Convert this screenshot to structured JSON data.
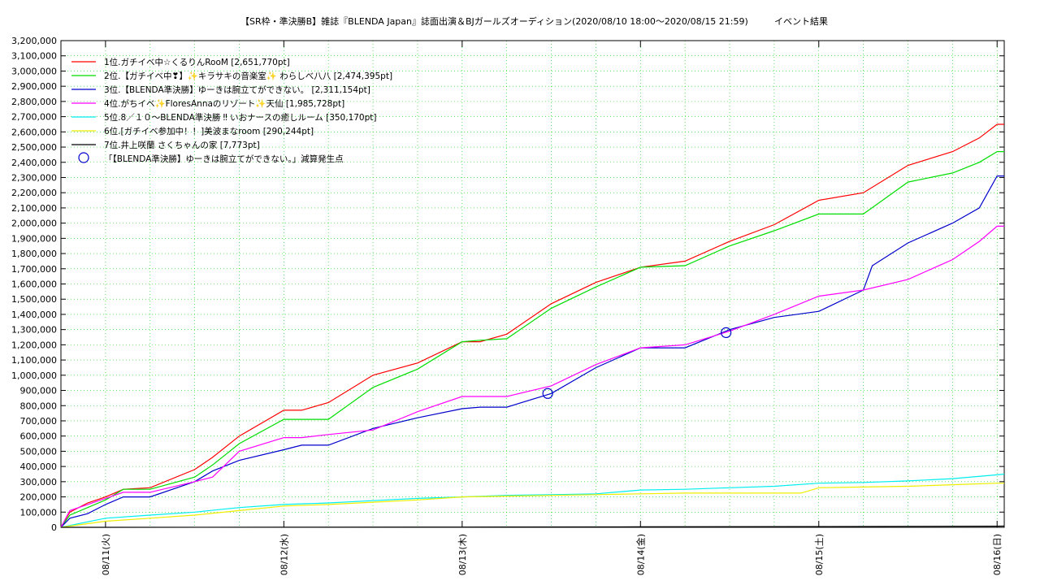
{
  "chart_data": {
    "type": "line",
    "title": "【SR枠・準決勝B】雑誌『BLENDA Japan』誌面出演＆BJガールズオーディション(2020/08/10 18:00〜2020/08/15 21:59)",
    "subtitle": "イベント結果",
    "ylim": [
      0,
      3200000
    ],
    "y_ticks": [
      "0",
      "100,000",
      "200,000",
      "300,000",
      "400,000",
      "500,000",
      "600,000",
      "700,000",
      "800,000",
      "900,000",
      "1,000,000",
      "1,100,000",
      "1,200,000",
      "1,300,000",
      "1,400,000",
      "1,500,000",
      "1,600,000",
      "1,700,000",
      "1,800,000",
      "1,900,000",
      "2,000,000",
      "2,100,000",
      "2,200,000",
      "2,300,000",
      "2,400,000",
      "2,500,000",
      "2,600,000",
      "2,700,000",
      "2,800,000",
      "2,900,000",
      "3,000,000",
      "3,100,000",
      "3,200,000"
    ],
    "x_ticks": [
      "08/11(火)",
      "08/12(水)",
      "08/13(木)",
      "08/14(金)",
      "08/15(土)",
      "08/16(日)"
    ],
    "x_tick_days": [
      1,
      2,
      3,
      4,
      5,
      6
    ],
    "xlim_days": [
      0.75,
      6.04
    ],
    "grid": true,
    "legend_placement": "top-left",
    "series": [
      {
        "name": "1位.ガチイベ中☆くるりんRooM [2,651,770pt]",
        "color": "#ff0000",
        "x": [
          0.75,
          0.8,
          0.9,
          1.0,
          1.1,
          1.25,
          1.5,
          1.6,
          1.75,
          2.0,
          2.1,
          2.25,
          2.5,
          2.75,
          3.0,
          3.1,
          3.25,
          3.5,
          3.75,
          4.0,
          4.25,
          4.5,
          4.75,
          5.0,
          5.25,
          5.5,
          5.75,
          5.9,
          6.0,
          6.04
        ],
        "y": [
          0,
          100000,
          160000,
          200000,
          250000,
          260000,
          380000,
          460000,
          600000,
          770000,
          770000,
          820000,
          1000000,
          1080000,
          1220000,
          1220000,
          1270000,
          1470000,
          1610000,
          1710000,
          1750000,
          1880000,
          1990000,
          2150000,
          2200000,
          2380000,
          2470000,
          2560000,
          2650000,
          2650000
        ]
      },
      {
        "name": "2位.【ガチイベ中❣】✨キラサキの音楽室✨ わらしべ八八 [2,474,395pt]",
        "color": "#00dd00",
        "x": [
          0.75,
          0.8,
          0.9,
          1.0,
          1.1,
          1.25,
          1.5,
          1.6,
          1.75,
          2.0,
          2.1,
          2.25,
          2.5,
          2.75,
          3.0,
          3.1,
          3.25,
          3.5,
          3.75,
          4.0,
          4.25,
          4.5,
          4.75,
          5.0,
          5.25,
          5.5,
          5.75,
          5.9,
          6.0,
          6.04
        ],
        "y": [
          0,
          80000,
          130000,
          180000,
          250000,
          250000,
          330000,
          410000,
          550000,
          710000,
          710000,
          710000,
          920000,
          1040000,
          1220000,
          1230000,
          1240000,
          1440000,
          1580000,
          1710000,
          1720000,
          1850000,
          1950000,
          2060000,
          2060000,
          2270000,
          2330000,
          2400000,
          2470000,
          2470000
        ]
      },
      {
        "name": "3位.【BLENDA準決勝】ゆーきは腕立てができない。 [2,311,154pt]",
        "color": "#0000cc",
        "x": [
          0.75,
          0.8,
          0.9,
          1.0,
          1.1,
          1.25,
          1.5,
          1.6,
          1.75,
          2.0,
          2.1,
          2.25,
          2.5,
          2.75,
          3.0,
          3.1,
          3.25,
          3.5,
          3.75,
          4.0,
          4.25,
          4.5,
          4.75,
          5.0,
          5.25,
          5.3,
          5.5,
          5.75,
          5.9,
          6.0,
          6.04
        ],
        "y": [
          0,
          60000,
          90000,
          150000,
          200000,
          200000,
          300000,
          370000,
          440000,
          510000,
          540000,
          540000,
          650000,
          720000,
          780000,
          790000,
          790000,
          880000,
          1050000,
          1180000,
          1180000,
          1300000,
          1380000,
          1420000,
          1560000,
          1720000,
          1870000,
          2000000,
          2100000,
          2310000,
          2310000
        ]
      },
      {
        "name": "4位.がちイベ✨FloresAnnaのリゾート✨天仙 [1,985,728pt]",
        "color": "#ff00ff",
        "x": [
          0.75,
          0.8,
          0.9,
          1.0,
          1.1,
          1.25,
          1.5,
          1.6,
          1.75,
          2.0,
          2.1,
          2.25,
          2.5,
          2.75,
          3.0,
          3.1,
          3.25,
          3.5,
          3.75,
          4.0,
          4.25,
          4.5,
          4.75,
          5.0,
          5.25,
          5.5,
          5.75,
          5.9,
          6.0,
          6.04
        ],
        "y": [
          0,
          110000,
          150000,
          190000,
          230000,
          230000,
          300000,
          330000,
          500000,
          590000,
          590000,
          610000,
          640000,
          760000,
          860000,
          860000,
          860000,
          930000,
          1070000,
          1180000,
          1200000,
          1290000,
          1400000,
          1520000,
          1560000,
          1630000,
          1760000,
          1880000,
          1980000,
          1980000
        ]
      },
      {
        "name": "5位.8／１０〜BLENDA準決勝 ‼ いおナースの癒しルーム [350,170pt]",
        "color": "#00eeee",
        "x": [
          0.75,
          1.0,
          1.25,
          1.5,
          1.75,
          2.0,
          2.25,
          2.5,
          2.75,
          3.0,
          3.25,
          3.5,
          3.75,
          4.0,
          4.25,
          4.5,
          4.75,
          5.0,
          5.25,
          5.5,
          5.75,
          6.0,
          6.04
        ],
        "y": [
          0,
          60000,
          80000,
          100000,
          130000,
          150000,
          160000,
          175000,
          190000,
          200000,
          210000,
          215000,
          220000,
          245000,
          250000,
          260000,
          270000,
          290000,
          295000,
          305000,
          320000,
          345000,
          350000
        ]
      },
      {
        "name": "6位.[ガチイベ参加中！！]美波まなroom [290,244pt]",
        "color": "#eeee00",
        "x": [
          0.75,
          1.0,
          1.25,
          1.5,
          1.75,
          2.0,
          2.25,
          2.5,
          2.75,
          3.0,
          3.25,
          3.5,
          3.75,
          4.0,
          4.25,
          4.5,
          4.75,
          4.9,
          5.0,
          5.25,
          5.5,
          5.75,
          6.0,
          6.04
        ],
        "y": [
          0,
          40000,
          60000,
          80000,
          110000,
          140000,
          150000,
          165000,
          180000,
          200000,
          205000,
          210000,
          215000,
          220000,
          225000,
          225000,
          225000,
          225000,
          260000,
          265000,
          270000,
          280000,
          290000,
          290000
        ]
      },
      {
        "name": "7位.井上咲蘭 さくちゃんの家 [7,773pt]",
        "color": "#000000",
        "x": [
          0.75,
          2.0,
          3.0,
          4.0,
          5.0,
          6.0,
          6.04
        ],
        "y": [
          0,
          500,
          1500,
          3000,
          5000,
          7500,
          7773
        ]
      }
    ],
    "markers": {
      "name": "「【BLENDA準決勝】ゆーきは腕立てができない。」減算発生点",
      "color": "#0000cc",
      "x": [
        3.48,
        4.48
      ],
      "y": [
        880000,
        1280000
      ]
    }
  }
}
